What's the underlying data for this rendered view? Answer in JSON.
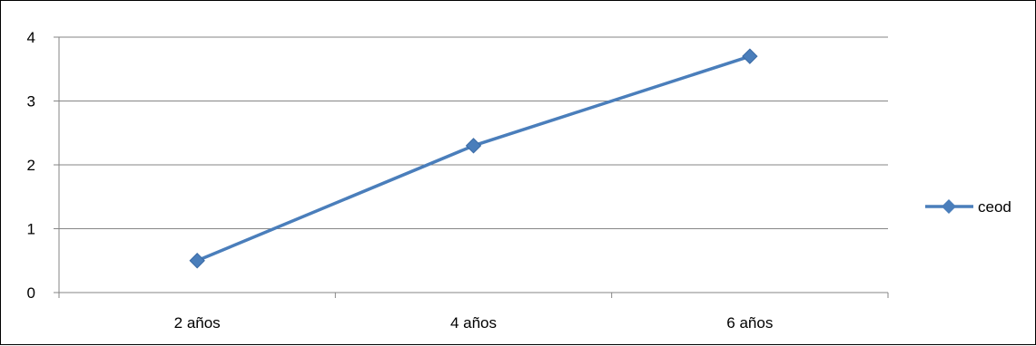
{
  "chart_data": {
    "type": "line",
    "title": "",
    "xlabel": "",
    "ylabel": "",
    "categories": [
      "2 años",
      "4 años",
      "6 años"
    ],
    "series": [
      {
        "name": "ceod",
        "values": [
          0.5,
          2.3,
          3.7
        ]
      }
    ],
    "ylim": [
      0,
      4
    ],
    "yticks": [
      "0",
      "1",
      "2",
      "3",
      "4"
    ],
    "grid": "horizontal",
    "legend": "right",
    "colors": {
      "line": "#4A7EBB",
      "grid": "#868686",
      "axis": "#868686",
      "text": "#000000"
    }
  }
}
